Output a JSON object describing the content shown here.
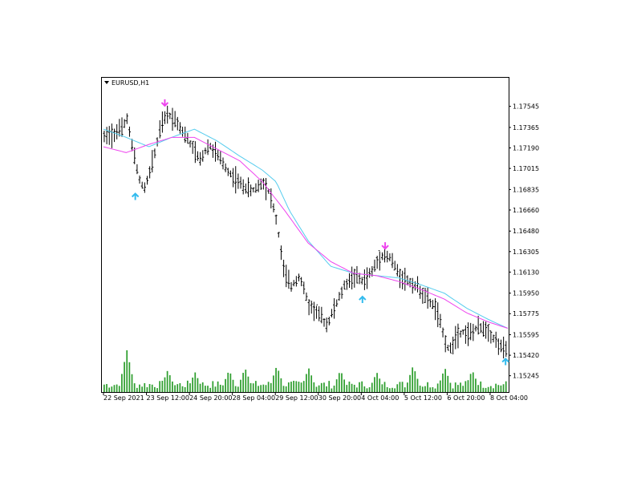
{
  "header": {
    "symbol_label": "EURUSD,H1",
    "triangle_icon": "triangle-down-icon"
  },
  "colors": {
    "candle": "#000000",
    "volume": "#2e9e2e",
    "ma_fast": "#ee44ee",
    "ma_slow": "#55ccee",
    "signal_down": "#ee44ee",
    "signal_up": "#33bbee",
    "frame": "#000000"
  },
  "chart_data": {
    "type": "candlestick",
    "symbol": "EURUSD",
    "timeframe": "H1",
    "y_ticks": [
      "1.17545",
      "1.17365",
      "1.17190",
      "1.17015",
      "1.16835",
      "1.16660",
      "1.16480",
      "1.16305",
      "1.16130",
      "1.15950",
      "1.15775",
      "1.15595",
      "1.15420",
      "1.15245"
    ],
    "y_tick_values": [
      1.17545,
      1.17365,
      1.1719,
      1.17015,
      1.16835,
      1.1666,
      1.1648,
      1.16305,
      1.1613,
      1.1595,
      1.15775,
      1.15595,
      1.1542,
      1.15245
    ],
    "ylim": [
      1.152,
      1.177
    ],
    "x_ticks": [
      "22 Sep 2021",
      "23 Sep 12:00",
      "24 Sep 20:00",
      "28 Sep 04:00",
      "29 Sep 12:00",
      "30 Sep 20:00",
      "4 Oct 04:00",
      "5 Oct 12:00",
      "6 Oct 20:00",
      "8 Oct 04:00"
    ],
    "x_tick_bar_index": [
      0,
      17,
      34,
      51,
      68,
      85,
      102,
      119,
      136,
      153
    ],
    "bar_count": 160,
    "price_path": [
      [
        0,
        1.1728
      ],
      [
        8,
        1.1735
      ],
      [
        10,
        1.1745
      ],
      [
        12,
        1.1722
      ],
      [
        16,
        1.1688
      ],
      [
        18,
        1.1685
      ],
      [
        22,
        1.1712
      ],
      [
        25,
        1.1738
      ],
      [
        28,
        1.1748
      ],
      [
        32,
        1.1742
      ],
      [
        34,
        1.1735
      ],
      [
        38,
        1.1722
      ],
      [
        42,
        1.1708
      ],
      [
        46,
        1.1722
      ],
      [
        50,
        1.1712
      ],
      [
        55,
        1.1698
      ],
      [
        60,
        1.1688
      ],
      [
        65,
        1.1682
      ],
      [
        70,
        1.169
      ],
      [
        73,
        1.168
      ],
      [
        76,
        1.1655
      ],
      [
        79,
        1.1615
      ],
      [
        82,
        1.16
      ],
      [
        86,
        1.161
      ],
      [
        90,
        1.1585
      ],
      [
        94,
        1.1578
      ],
      [
        98,
        1.1568
      ],
      [
        102,
        1.1585
      ],
      [
        106,
        1.1602
      ],
      [
        110,
        1.161
      ],
      [
        114,
        1.1605
      ],
      [
        118,
        1.1614
      ],
      [
        122,
        1.1628
      ],
      [
        126,
        1.1625
      ],
      [
        130,
        1.161
      ],
      [
        134,
        1.1605
      ],
      [
        138,
        1.16
      ],
      [
        142,
        1.159
      ],
      [
        146,
        1.1582
      ],
      [
        150,
        1.1555
      ],
      [
        152,
        1.1545
      ],
      [
        155,
        1.156
      ],
      [
        158,
        1.1562
      ],
      [
        161,
        1.156
      ],
      [
        164,
        1.1565
      ],
      [
        168,
        1.1565
      ],
      [
        172,
        1.1555
      ],
      [
        175,
        1.1548
      ],
      [
        178,
        1.1545
      ]
    ],
    "ma_fast_path": [
      [
        0,
        1.172
      ],
      [
        10,
        1.1715
      ],
      [
        20,
        1.1722
      ],
      [
        30,
        1.1728
      ],
      [
        40,
        1.1728
      ],
      [
        50,
        1.1718
      ],
      [
        60,
        1.1708
      ],
      [
        70,
        1.169
      ],
      [
        80,
        1.1665
      ],
      [
        90,
        1.1638
      ],
      [
        100,
        1.1622
      ],
      [
        110,
        1.1612
      ],
      [
        120,
        1.161
      ],
      [
        130,
        1.1605
      ],
      [
        140,
        1.1598
      ],
      [
        150,
        1.159
      ],
      [
        160,
        1.1578
      ],
      [
        170,
        1.157
      ],
      [
        178,
        1.1565
      ]
    ],
    "ma_slow_path": [
      [
        0,
        1.1735
      ],
      [
        10,
        1.1728
      ],
      [
        20,
        1.172
      ],
      [
        30,
        1.1728
      ],
      [
        40,
        1.1735
      ],
      [
        50,
        1.1725
      ],
      [
        60,
        1.1712
      ],
      [
        70,
        1.17
      ],
      [
        76,
        1.169
      ],
      [
        82,
        1.1665
      ],
      [
        90,
        1.164
      ],
      [
        100,
        1.1618
      ],
      [
        110,
        1.1612
      ],
      [
        120,
        1.161
      ],
      [
        130,
        1.1608
      ],
      [
        140,
        1.1602
      ],
      [
        150,
        1.1595
      ],
      [
        160,
        1.1582
      ],
      [
        170,
        1.1572
      ],
      [
        178,
        1.1565
      ]
    ],
    "volume_spikes": [
      [
        10,
        0.95
      ],
      [
        28,
        0.5
      ],
      [
        40,
        0.45
      ],
      [
        55,
        0.5
      ],
      [
        62,
        0.55
      ],
      [
        76,
        0.6
      ],
      [
        90,
        0.55
      ],
      [
        104,
        0.5
      ],
      [
        120,
        0.45
      ],
      [
        136,
        0.6
      ],
      [
        150,
        0.55
      ],
      [
        162,
        0.5
      ]
    ],
    "signals": [
      {
        "bar": 27,
        "direction": "down",
        "price": 1.1755
      },
      {
        "bar": 14,
        "direction": "up",
        "price": 1.168
      },
      {
        "bar": 114,
        "direction": "up",
        "price": 1.1592
      },
      {
        "bar": 124,
        "direction": "down",
        "price": 1.1633
      },
      {
        "bar": 177,
        "direction": "up",
        "price": 1.1539
      }
    ]
  }
}
